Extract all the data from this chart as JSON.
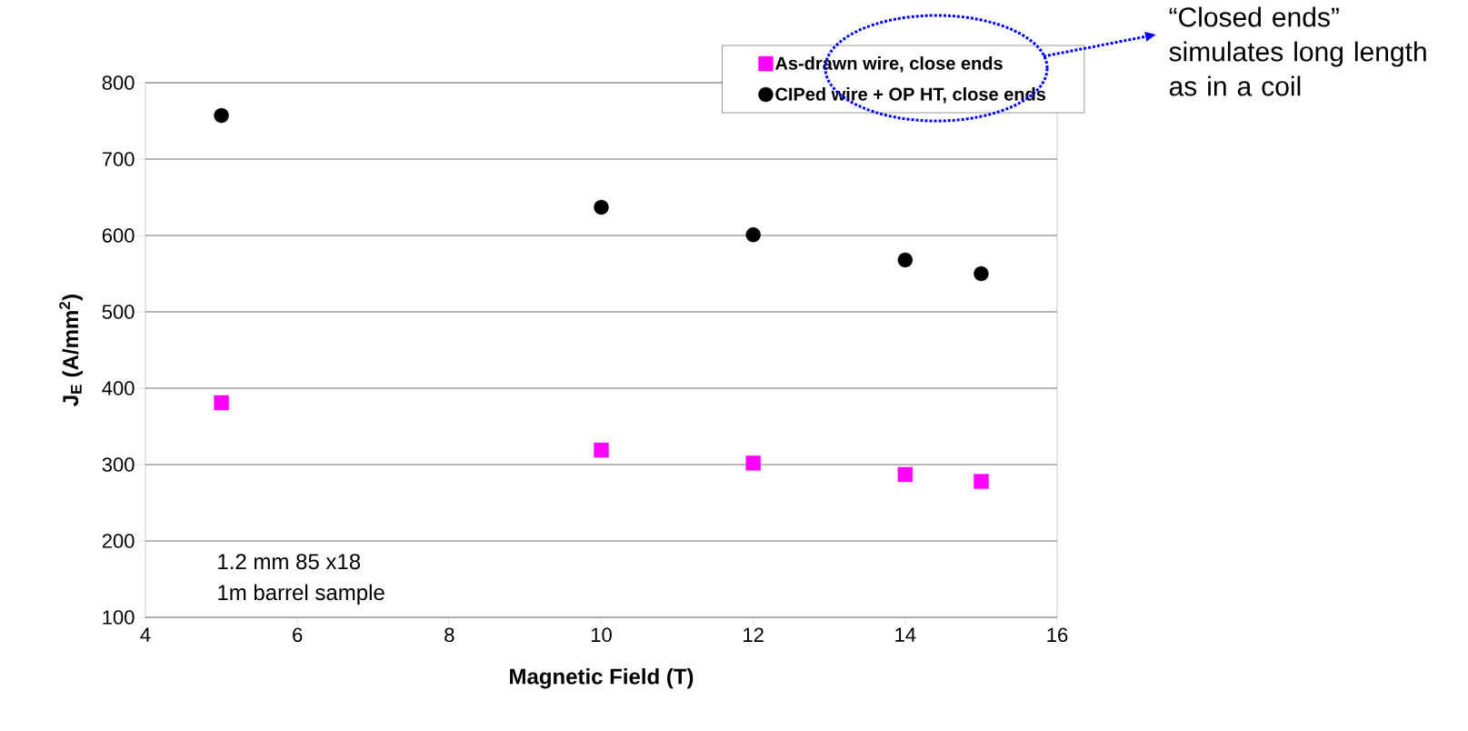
{
  "chart_data": {
    "type": "scatter",
    "xlabel": "Magnetic Field (T)",
    "ylabel": "J$_{E}$ (A/mm$^{2}$)",
    "x": [
      5,
      10,
      12,
      14,
      15
    ],
    "series": [
      {
        "name": "As-drawn wire, close ends",
        "color": "#ff00ff",
        "marker": "square",
        "values": [
          381,
          319,
          302,
          287,
          278
        ]
      },
      {
        "name": "CIPed wire + OP HT, close ends",
        "color": "#000000",
        "marker": "circle",
        "values": [
          757,
          637,
          601,
          568,
          550
        ]
      }
    ],
    "xlim": [
      4,
      16
    ],
    "xticks": [
      4,
      6,
      8,
      10,
      12,
      14,
      16
    ],
    "ylim": [
      100,
      800
    ],
    "yticks": [
      100,
      200,
      300,
      400,
      500,
      600,
      700,
      800
    ],
    "grid": "y",
    "legend": "top right",
    "annotations": [
      "1.2 mm 85 x18",
      "1m barrel sample",
      "“Closed ends” simulates long length as in a coil"
    ]
  }
}
